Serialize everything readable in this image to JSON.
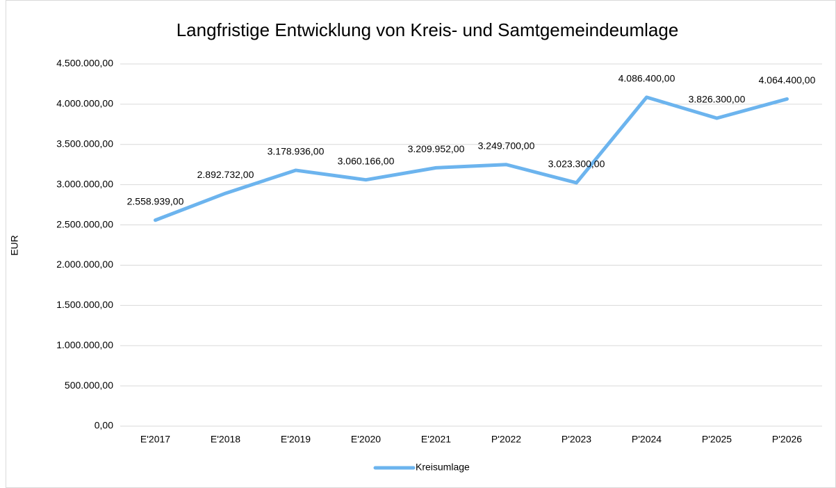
{
  "chart_data": {
    "type": "line",
    "title": "Langfristige Entwicklung von Kreis- und Samtgemeindeumlage",
    "y_label": "EUR",
    "categories": [
      "E'2017",
      "E'2018",
      "E'2019",
      "E'2020",
      "E'2021",
      "P'2022",
      "P'2023",
      "P'2024",
      "P'2025",
      "P'2026"
    ],
    "series": [
      {
        "name": "Kreisumlage",
        "color": "#6cb4ee",
        "values": [
          2558939,
          2892732,
          3178936,
          3060166,
          3209952,
          3249700,
          3023300,
          4086400,
          3826300,
          4064400
        ],
        "value_labels": [
          "2.558.939,00",
          "2.892.732,00",
          "3.178.936,00",
          "3.060.166,00",
          "3.209.952,00",
          "3.249.700,00",
          "3.023.300,00",
          "4.086.400,00",
          "3.826.300,00",
          "4.064.400,00"
        ]
      }
    ],
    "ylim": [
      0,
      4500000
    ],
    "yticks": [
      {
        "value": 0,
        "label": "0,00"
      },
      {
        "value": 500000,
        "label": "500.000,00"
      },
      {
        "value": 1000000,
        "label": "1.000.000,00"
      },
      {
        "value": 1500000,
        "label": "1.500.000,00"
      },
      {
        "value": 2000000,
        "label": "2.000.000,00"
      },
      {
        "value": 2500000,
        "label": "2.500.000,00"
      },
      {
        "value": 3000000,
        "label": "3.000.000,00"
      },
      {
        "value": 3500000,
        "label": "3.500.000,00"
      },
      {
        "value": 4000000,
        "label": "4.000.000,00"
      },
      {
        "value": 4500000,
        "label": "4.500.000,00"
      }
    ],
    "grid": true,
    "legend": "bottom"
  }
}
